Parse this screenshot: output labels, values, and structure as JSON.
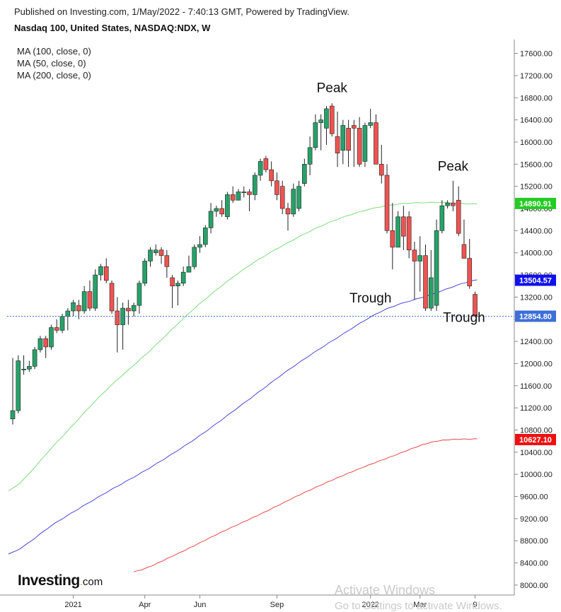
{
  "header": {
    "published": "Published on Investing.com, 1/May/2022 - 7:40:13 GMT, Powered by TradingView.",
    "instrument": "Nasdaq 100, United States, NASDAQ:NDX, W"
  },
  "indicators": [
    "MA (100, close, 0)",
    "MA (50, close, 0)",
    "MA (200, close, 0)"
  ],
  "logo": {
    "text": "Investing",
    "suffix": "com"
  },
  "watermark": {
    "line1": "Activate Windows",
    "line2": "Go to Settings to activate Windows."
  },
  "colors": {
    "up": "#26a269",
    "down": "#ef5350",
    "ma50": "#7fdc7f",
    "ma100": "#4b4bd8",
    "ma200": "#e84a4a",
    "last_price": "#3d6fd8",
    "ma50_badge": "#22cc22",
    "ma100_badge": "#1010ee",
    "ma200_badge": "#ee1111"
  },
  "chart_data": {
    "type": "candlestick",
    "y_axis": {
      "position": "right",
      "ticks": [
        8000,
        8400,
        8800,
        9200,
        9600,
        10000,
        10400,
        10800,
        11200,
        11600,
        12000,
        12400,
        12800,
        13200,
        13600,
        14000,
        14400,
        14800,
        15200,
        15600,
        16000,
        16400,
        16800,
        17200,
        17600
      ],
      "tick_labels": [
        "8000.00",
        "8400.00",
        "8800.00",
        "9200.00",
        "9600.00",
        "10000.00",
        "10400.00",
        "10800.00",
        "11200.00",
        "11600.00",
        "12000.00",
        "12400.00",
        "12800.00",
        "13200.00",
        "13600.00",
        "14000.00",
        "14400.00",
        "14800.00",
        "15200.00",
        "15600.00",
        "16000.00",
        "16400.00",
        "16800.00",
        "17200.00",
        "17600.00"
      ],
      "range": [
        7820,
        17850
      ]
    },
    "x_axis": {
      "labels": [
        {
          "text": "2021",
          "bar": 11
        },
        {
          "text": "Apr",
          "bar": 24
        },
        {
          "text": "Jun",
          "bar": 34
        },
        {
          "text": "Sep",
          "bar": 48
        },
        {
          "text": "2022",
          "bar": 65
        },
        {
          "text": "Mar",
          "bar": 74
        },
        {
          "text": "9",
          "bar": 84
        }
      ],
      "bar_count": 88
    },
    "candles": [
      [
        11000,
        12100,
        10900,
        11150
      ],
      [
        11150,
        12150,
        11100,
        12050
      ],
      [
        11900,
        12150,
        11800,
        11900
      ],
      [
        11900,
        12050,
        11850,
        11950
      ],
      [
        11950,
        12300,
        11900,
        12250
      ],
      [
        12250,
        12500,
        12200,
        12450
      ],
      [
        12450,
        12500,
        12100,
        12300
      ],
      [
        12300,
        12700,
        12250,
        12650
      ],
      [
        12650,
        12800,
        12550,
        12600
      ],
      [
        12600,
        12900,
        12550,
        12850
      ],
      [
        12850,
        13000,
        12600,
        12950
      ],
      [
        12950,
        13150,
        12850,
        13100
      ],
      [
        13050,
        13150,
        12800,
        12950
      ],
      [
        12950,
        13400,
        12900,
        13300
      ],
      [
        13300,
        13500,
        12950,
        13000
      ],
      [
        13000,
        13700,
        12950,
        13600
      ],
      [
        13600,
        13800,
        13500,
        13750
      ],
      [
        13750,
        13900,
        13450,
        13500
      ],
      [
        13450,
        13500,
        12900,
        12950
      ],
      [
        12950,
        13200,
        12200,
        12700
      ],
      [
        12700,
        13100,
        12250,
        13000
      ],
      [
        13000,
        13150,
        12700,
        12950
      ],
      [
        12950,
        13100,
        12850,
        13050
      ],
      [
        13050,
        13500,
        12900,
        13450
      ],
      [
        13450,
        13900,
        13400,
        13850
      ],
      [
        13850,
        14100,
        13750,
        14050
      ],
      [
        14000,
        14150,
        13950,
        14050
      ],
      [
        14050,
        14100,
        13800,
        13950
      ],
      [
        13950,
        14050,
        13550,
        13750
      ],
      [
        13550,
        13600,
        13000,
        13400
      ],
      [
        13400,
        13500,
        13050,
        13450
      ],
      [
        13450,
        13750,
        13400,
        13650
      ],
      [
        13650,
        13950,
        13650,
        13750
      ],
      [
        13750,
        14150,
        13700,
        14100
      ],
      [
        14100,
        14300,
        14000,
        14150
      ],
      [
        14150,
        14500,
        14100,
        14450
      ],
      [
        14450,
        14900,
        14350,
        14750
      ],
      [
        14750,
        14850,
        14650,
        14800
      ],
      [
        14800,
        14950,
        14650,
        14700
      ],
      [
        14650,
        15100,
        14600,
        15050
      ],
      [
        15050,
        15200,
        14900,
        14950
      ],
      [
        14950,
        15150,
        14950,
        15100
      ],
      [
        15100,
        15200,
        15000,
        15100
      ],
      [
        15100,
        15150,
        14750,
        15050
      ],
      [
        15050,
        15450,
        14950,
        15400
      ],
      [
        15400,
        15700,
        15300,
        15650
      ],
      [
        15700,
        15750,
        15450,
        15500
      ],
      [
        15500,
        15650,
        15200,
        15300
      ],
      [
        15300,
        15450,
        14950,
        15050
      ],
      [
        15200,
        15300,
        14700,
        14800
      ],
      [
        14800,
        14900,
        14400,
        14700
      ],
      [
        14700,
        15250,
        14650,
        15150
      ],
      [
        14800,
        15300,
        14750,
        15200
      ],
      [
        15250,
        15700,
        15200,
        15600
      ],
      [
        15600,
        16100,
        15400,
        15900
      ],
      [
        15900,
        16500,
        15850,
        16350
      ],
      [
        16350,
        16500,
        15850,
        16400
      ],
      [
        16250,
        16650,
        15950,
        16600
      ],
      [
        16650,
        16700,
        16100,
        16150
      ],
      [
        16100,
        16550,
        15550,
        15800
      ],
      [
        15850,
        16400,
        15600,
        16300
      ],
      [
        16250,
        16400,
        15550,
        15850
      ],
      [
        16300,
        16400,
        15550,
        16250
      ],
      [
        16250,
        16450,
        15550,
        15600
      ],
      [
        15650,
        16350,
        15550,
        16300
      ],
      [
        16300,
        16600,
        16250,
        16350
      ],
      [
        16350,
        16500,
        15600,
        15600
      ],
      [
        15600,
        15950,
        15250,
        15400
      ],
      [
        15400,
        15600,
        14350,
        14400
      ],
      [
        14400,
        14900,
        13700,
        14100
      ],
      [
        14100,
        14750,
        14100,
        14650
      ],
      [
        14650,
        14850,
        14050,
        14300
      ],
      [
        14650,
        14750,
        13900,
        14050
      ],
      [
        14050,
        14200,
        13150,
        13850
      ],
      [
        13850,
        14300,
        13300,
        13950
      ],
      [
        13950,
        14150,
        12950,
        13000
      ],
      [
        13000,
        14050,
        12950,
        13550
      ],
      [
        13050,
        14600,
        12950,
        14400
      ],
      [
        14400,
        14950,
        14350,
        14850
      ],
      [
        14850,
        14950,
        14800,
        14900
      ],
      [
        14900,
        15300,
        14750,
        14850
      ],
      [
        14950,
        15200,
        14300,
        14350
      ],
      [
        14150,
        14600,
        13900,
        13900
      ],
      [
        13900,
        14250,
        13350,
        13400
      ],
      [
        13250,
        13300,
        12850,
        12855
      ]
    ],
    "moving_averages": [
      {
        "name": "MA (50, close, 0)",
        "key": "ma50",
        "start_bar": 0,
        "values": [
          9700,
          10550,
          11450,
          12220,
          13020,
          13690,
          14200,
          14600,
          14840,
          14910,
          14880
        ],
        "step": 8.4
      },
      {
        "name": "MA (100, close, 0)",
        "key": "ma100",
        "start_bar": 0,
        "values": [
          8560,
          9120,
          9630,
          10110,
          10650,
          11270,
          11900,
          12460,
          12960,
          13240,
          13510
        ],
        "step": 8.4
      },
      {
        "name": "MA (200, close, 0)",
        "key": "ma200",
        "start_bar": 22,
        "values": [
          8240,
          8560,
          8940,
          9300,
          9680,
          10020,
          10320,
          10590,
          10640
        ],
        "step": 7.8
      }
    ],
    "price_badges": [
      {
        "label": "14890.91",
        "value": 14890.91,
        "color_key": "ma50_badge"
      },
      {
        "label": "13504.57",
        "value": 13504.57,
        "color_key": "ma100_badge"
      },
      {
        "label": "12854.80",
        "value": 12854.8,
        "color_key": "last_price"
      },
      {
        "label": "10627.10",
        "value": 10627.1,
        "color_key": "ma200_badge"
      }
    ],
    "last_price_line": 12854.8,
    "annotations": [
      {
        "text": "Peak",
        "bar": 58,
        "value": 16900
      },
      {
        "text": "Peak",
        "bar": 80,
        "value": 15480
      },
      {
        "text": "Trough",
        "bar": 65,
        "value": 13100
      },
      {
        "text": "Trough",
        "bar": 82,
        "value": 12750
      }
    ]
  }
}
